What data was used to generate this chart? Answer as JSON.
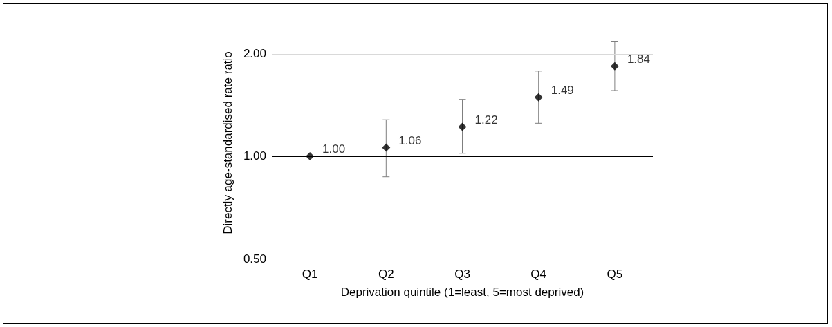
{
  "chart_data": {
    "type": "scatter",
    "xlabel": "Deprivation quintile (1=least, 5=most deprived)",
    "ylabel": "Directly age-standardised rate ratio",
    "categories": [
      "Q1",
      "Q2",
      "Q3",
      "Q4",
      "Q5"
    ],
    "series": [
      {
        "color": "#000000",
        "values": [
          1.0,
          1.06,
          1.22,
          1.49,
          1.84
        ],
        "value_labels": [
          "1.00",
          "1.06",
          "1.22",
          "1.49",
          "1.84"
        ],
        "errors": [
          null,
          [
            0.87,
            1.28
          ],
          [
            1.02,
            1.47
          ],
          [
            1.25,
            1.78
          ],
          [
            1.56,
            2.17
          ]
        ]
      }
    ],
    "log": "y",
    "ylim": [
      0.5,
      2.4
    ],
    "yticks": [
      {
        "value": 0.5,
        "label": "0.50"
      },
      {
        "value": 1,
        "label": "1.00"
      },
      {
        "value": 2,
        "label": "2.00"
      }
    ],
    "marker": "diamond",
    "ref_lines": [
      {
        "axis": "y",
        "value": 1,
        "color": "#000000"
      },
      {
        "axis": "y",
        "value": 2,
        "color": "#d9d9d9"
      }
    ]
  }
}
